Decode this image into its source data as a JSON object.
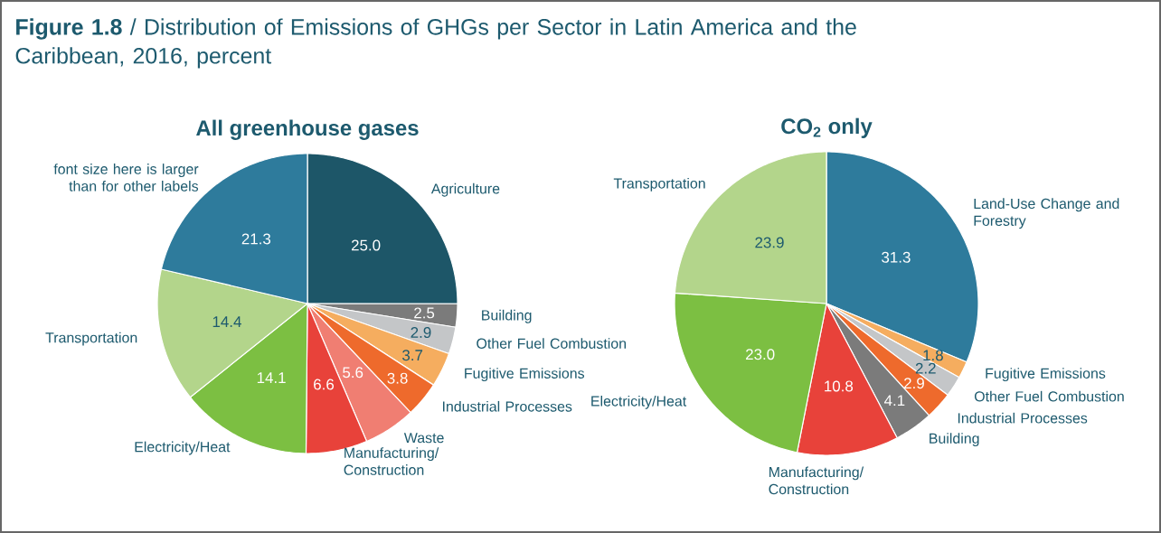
{
  "chart_data": [
    {
      "type": "pie",
      "title": "**Figure 1.8** / Distribution of Emissions of GHGs per Sector in Latin America and the Caribbean, 2016, percent",
      "subtitle": "All greenhouse gases",
      "categories": [
        "Agriculture",
        "Building",
        "Other Fuel Combustion",
        "Fugitive Emissions",
        "Industrial Processes",
        "Waste",
        "Manufacturing/ Construction",
        "Electricity/Heat",
        "Transportation",
        "font size here is larger than for other labels"
      ],
      "values": [
        25.0,
        2.5,
        2.9,
        3.7,
        3.8,
        5.6,
        6.6,
        14.1,
        14.4,
        21.3
      ],
      "colors": [
        "#1d5668",
        "#7b7b7b",
        "#c4c6c8",
        "#f5ad5f",
        "#ee6a2c",
        "#f07e72",
        "#e8423a",
        "#7cbf42",
        "#b3d58b",
        "#2e7b9c"
      ],
      "value_labels": [
        "25.0",
        "2.5",
        "2.9",
        "3.7",
        "3.8",
        "5.6",
        "6.6",
        "14.1",
        "14.4",
        "21.3"
      ]
    },
    {
      "type": "pie",
      "subtitle": "CO$_{2}$ only",
      "categories": [
        "Land-Use Change and Forestry",
        "Fugitive Emissions",
        "Other Fuel Combustion",
        "Industrial Processes",
        "Building",
        "Manufacturing/ Construction",
        "Electricity/Heat",
        "Transportation"
      ],
      "values": [
        31.3,
        1.8,
        2.2,
        2.9,
        4.1,
        10.8,
        23.0,
        23.9
      ],
      "colors": [
        "#2e7b9c",
        "#f5ad5f",
        "#c4c6c8",
        "#ee6a2c",
        "#7b7b7b",
        "#e8423a",
        "#7cbf42",
        "#b3d58b"
      ],
      "value_labels": [
        "31.3",
        "1.8",
        "2.2",
        "2.9",
        "4.1",
        "10.8",
        "23.0",
        "23.9"
      ]
    }
  ]
}
